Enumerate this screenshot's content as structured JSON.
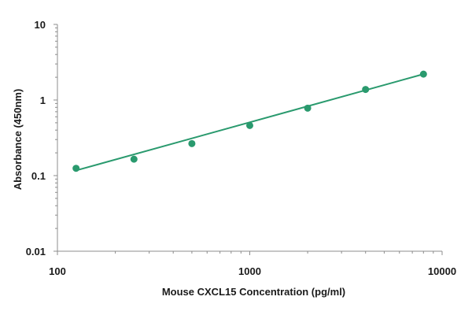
{
  "chart_data": {
    "type": "scatter",
    "xlabel": "Mouse CXCL15 Concentration (pg/ml)",
    "ylabel": "Absorbance (450nm)",
    "x_scale": "log",
    "y_scale": "log",
    "xlim": [
      100,
      10000
    ],
    "ylim": [
      0.01,
      10
    ],
    "x_ticks": [
      100,
      1000,
      10000
    ],
    "x_tick_labels": [
      "100",
      "1000",
      "10000"
    ],
    "y_ticks": [
      0.01,
      0.1,
      1,
      10
    ],
    "y_tick_labels": [
      "0.01",
      "0.1",
      "1",
      "10"
    ],
    "grid": false,
    "series": [
      {
        "x": [
          125,
          250,
          500,
          1000,
          2000,
          4000,
          8000
        ],
        "y": [
          0.125,
          0.165,
          0.265,
          0.46,
          0.78,
          1.38,
          2.2
        ]
      }
    ],
    "trendline": {
      "x": [
        125,
        8000
      ],
      "y": [
        0.117,
        2.2
      ]
    },
    "colors": {
      "series": "#2a9a6e",
      "axis": "#8c8c8c",
      "text": "#1a1a1a"
    }
  }
}
